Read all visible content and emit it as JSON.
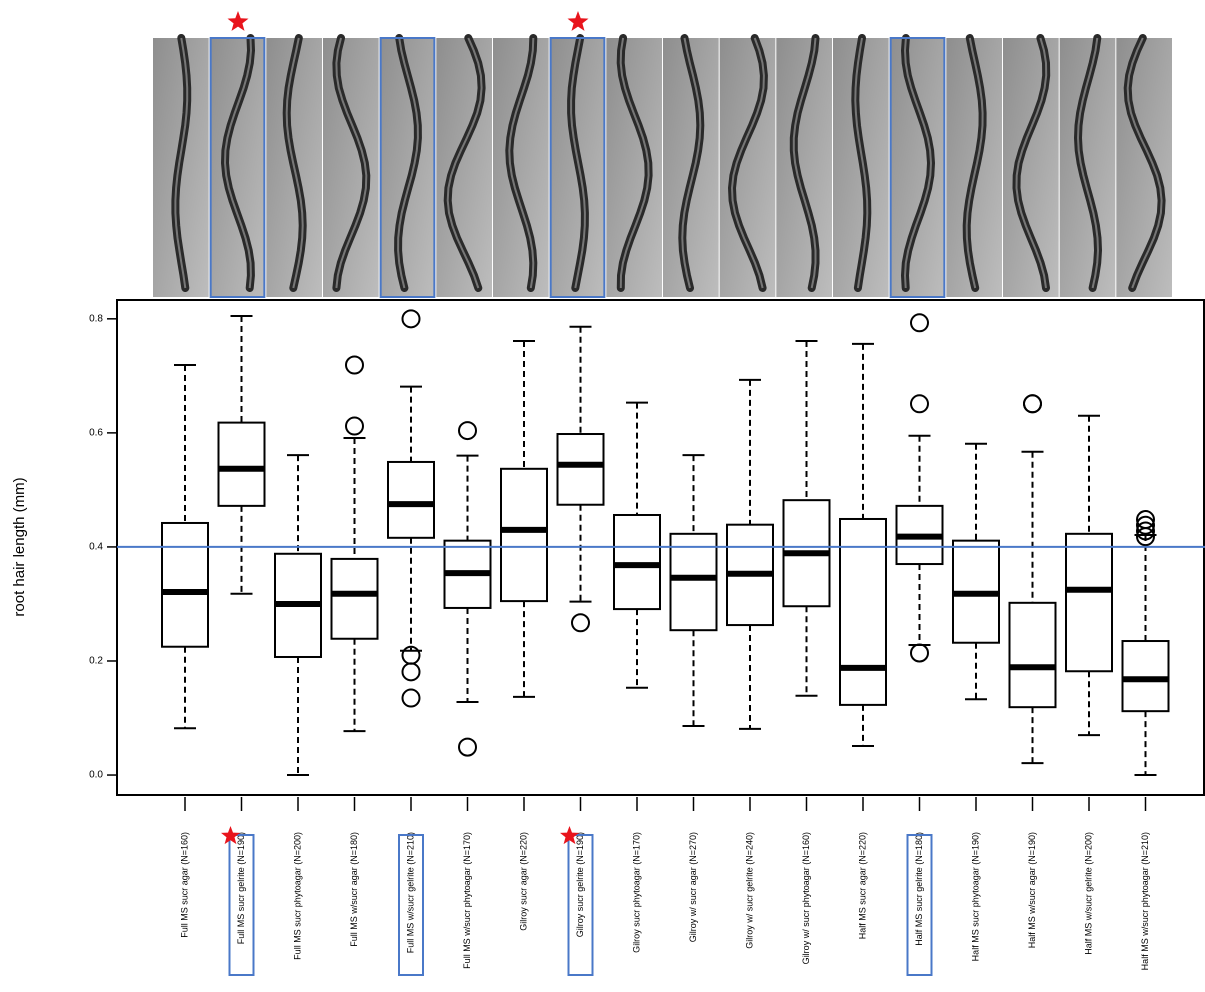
{
  "chart_data": {
    "type": "boxplot",
    "y_label": "root hair length (mm)",
    "categories": [
      "Full MS sucr agar (N=160)",
      "Full MS sucr gelrite (N=190)",
      "Full MS sucr phytoagar (N=200)",
      "Full MS w/sucr agar (N=180)",
      "Full MS w/sucr gelrite (N=210)",
      "Full MS w/sucr phytoagar (N=170)",
      "Gilroy sucr agar (N=220)",
      "Gilroy sucr gelrite (N=190)",
      "Gilroy sucr phytoagar (N=170)",
      "Gilroy w/ sucr agar (N=270)",
      "Gilroy w/ sucr gelrite (N=240)",
      "Gilroy w/ sucr phytoagar (N=160)",
      "Half MS sucr agar (N=220)",
      "Half MS sucr gelrite (N=180)",
      "Half MS sucr phytoagar (N=190)",
      "Half MS w/sucr agar (N=190)",
      "Half MS w/sucr gelrite (N=200)",
      "Half MS w/sucr phytoagar (N=210)"
    ],
    "boxes": [
      {
        "low": 0.082,
        "q1": 0.225,
        "median": 0.321,
        "q3": 0.442,
        "high": 0.719,
        "outliers": []
      },
      {
        "low": 0.318,
        "q1": 0.472,
        "median": 0.537,
        "q3": 0.618,
        "high": 0.805,
        "outliers": []
      },
      {
        "low": 0.0,
        "q1": 0.207,
        "median": 0.3,
        "q3": 0.388,
        "high": 0.561,
        "outliers": []
      },
      {
        "low": 0.077,
        "q1": 0.239,
        "median": 0.318,
        "q3": 0.379,
        "high": 0.591,
        "outliers": [
          0.719,
          0.612
        ]
      },
      {
        "low": 0.218,
        "q1": 0.416,
        "median": 0.475,
        "q3": 0.549,
        "high": 0.681,
        "outliers": [
          0.8,
          0.21,
          0.181,
          0.135
        ]
      },
      {
        "low": 0.128,
        "q1": 0.293,
        "median": 0.354,
        "q3": 0.411,
        "high": 0.56,
        "outliers": [
          0.604,
          0.049
        ]
      },
      {
        "low": 0.137,
        "q1": 0.305,
        "median": 0.43,
        "q3": 0.537,
        "high": 0.761,
        "outliers": []
      },
      {
        "low": 0.304,
        "q1": 0.474,
        "median": 0.544,
        "q3": 0.598,
        "high": 0.786,
        "outliers": [
          0.267
        ]
      },
      {
        "low": 0.153,
        "q1": 0.291,
        "median": 0.368,
        "q3": 0.456,
        "high": 0.653,
        "outliers": []
      },
      {
        "low": 0.086,
        "q1": 0.254,
        "median": 0.346,
        "q3": 0.423,
        "high": 0.561,
        "outliers": []
      },
      {
        "low": 0.081,
        "q1": 0.263,
        "median": 0.353,
        "q3": 0.439,
        "high": 0.693,
        "outliers": []
      },
      {
        "low": 0.139,
        "q1": 0.296,
        "median": 0.389,
        "q3": 0.482,
        "high": 0.761,
        "outliers": []
      },
      {
        "low": 0.051,
        "q1": 0.123,
        "median": 0.188,
        "q3": 0.449,
        "high": 0.756,
        "outliers": []
      },
      {
        "low": 0.228,
        "q1": 0.37,
        "median": 0.418,
        "q3": 0.472,
        "high": 0.595,
        "outliers": [
          0.793,
          0.651,
          0.214
        ]
      },
      {
        "low": 0.133,
        "q1": 0.232,
        "median": 0.318,
        "q3": 0.411,
        "high": 0.581,
        "outliers": []
      },
      {
        "low": 0.021,
        "q1": 0.119,
        "median": 0.189,
        "q3": 0.302,
        "high": 0.567,
        "outliers": [
          0.651,
          0.651
        ]
      },
      {
        "low": 0.07,
        "q1": 0.182,
        "median": 0.325,
        "q3": 0.423,
        "high": 0.63,
        "outliers": []
      },
      {
        "low": 0.0,
        "q1": 0.112,
        "median": 0.168,
        "q3": 0.235,
        "high": 0.421,
        "outliers": [
          0.448,
          0.438,
          0.428,
          0.418
        ]
      }
    ],
    "ylim": [
      -0.035,
      0.833
    ],
    "yticks": [
      {
        "value": 0,
        "label": "0.0"
      },
      0.2,
      0.4,
      0.6,
      0.8
    ],
    "reference_line": 0.4,
    "reference_color": "#4a78c8",
    "highlighted": [
      1,
      4,
      7,
      13
    ],
    "starred": [
      1,
      7
    ],
    "star_color": "#e8141c"
  }
}
